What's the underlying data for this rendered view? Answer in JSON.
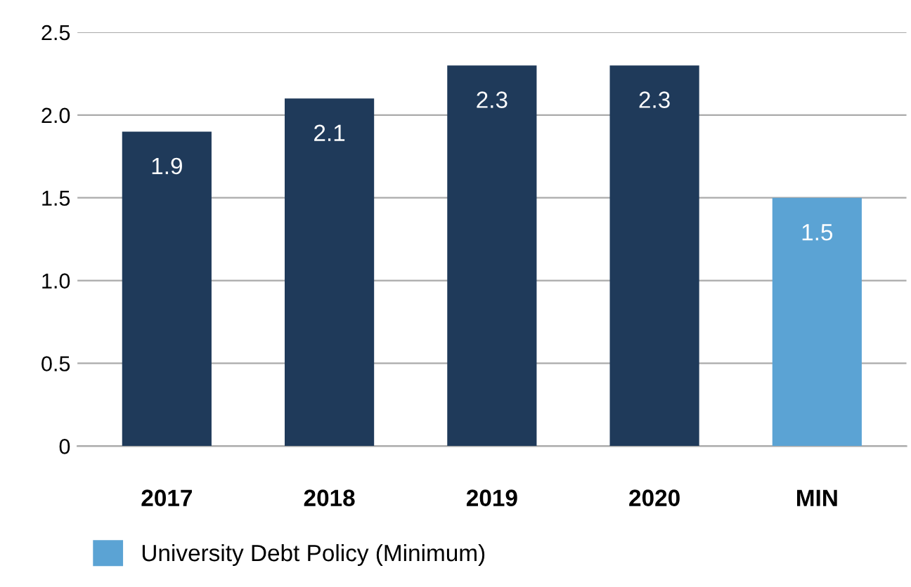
{
  "chart_data": {
    "type": "bar",
    "categories": [
      "2017",
      "2018",
      "2019",
      "2020",
      "MIN"
    ],
    "stacked": true,
    "series": [
      {
        "color": "#1f3a5a",
        "values": [
          1.9,
          2.1,
          2.3,
          2.3,
          null
        ]
      },
      {
        "name": "University Debt Policy (Minimum)",
        "color": "#5ba3d4",
        "values": [
          null,
          null,
          null,
          null,
          1.5
        ]
      }
    ],
    "ylim": [
      0,
      2.5
    ],
    "yticks": [
      0,
      0.5,
      {
        "value": 1,
        "label": "1.0"
      },
      1.5,
      {
        "value": 2,
        "label": "2.0"
      },
      2.5
    ],
    "grid": "y",
    "legend": "bottom left",
    "data_labels": true
  }
}
